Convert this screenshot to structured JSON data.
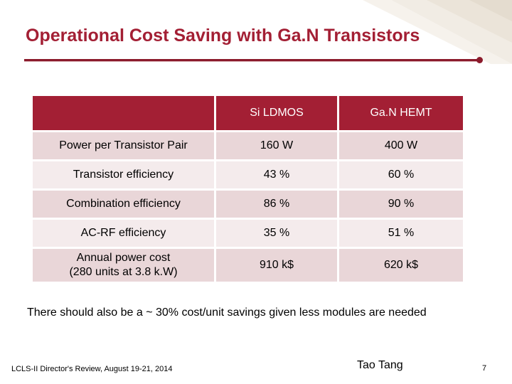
{
  "slide": {
    "title": "Operational Cost Saving with Ga.N Transistors",
    "accent_color": "#a31f34"
  },
  "table": {
    "headers": [
      "",
      "Si LDMOS",
      "Ga.N HEMT"
    ],
    "rows": [
      {
        "label": "Power per Transistor Pair",
        "si": "160 W",
        "gan": "400 W"
      },
      {
        "label": "Transistor efficiency",
        "si": "43 %",
        "gan": "60 %"
      },
      {
        "label": "Combination efficiency",
        "si": "86 %",
        "gan": "90 %"
      },
      {
        "label": "AC-RF efficiency",
        "si": "35 %",
        "gan": "51 %"
      },
      {
        "label_line1": "Annual power cost",
        "label_line2": "(280 units at 3.8 k.W)",
        "si": "910 k$",
        "gan": "620 k$"
      }
    ]
  },
  "note": "There should also be a ~ 30% cost/unit savings given less modules are needed",
  "footer": {
    "left": "LCLS-II Director's Review, August 19-21, 2014",
    "author": "Tao Tang",
    "page_number": "7"
  }
}
